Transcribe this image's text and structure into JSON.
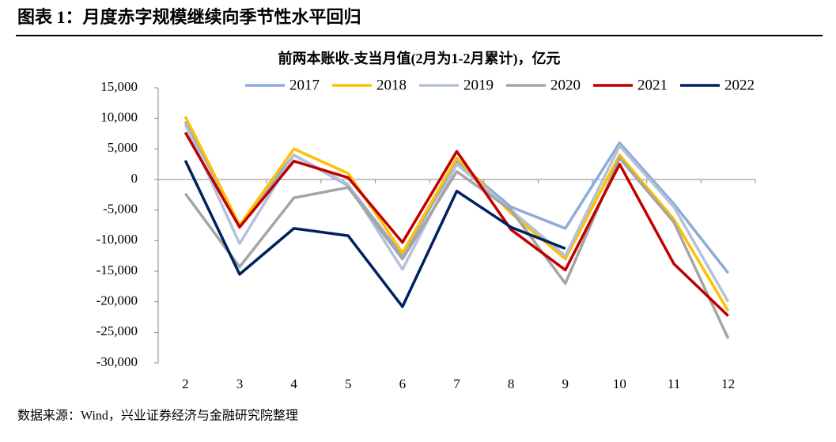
{
  "header": {
    "title": "图表 1：月度赤字规模继续向季节性水平回归"
  },
  "chart_data": {
    "type": "line",
    "title": "前两本账收-支当月值(2月为1-2月累计)，亿元",
    "categories": [
      "2",
      "3",
      "4",
      "5",
      "6",
      "7",
      "8",
      "9",
      "10",
      "11",
      "12"
    ],
    "series": [
      {
        "name": "2017",
        "color": "#8eaadb",
        "values": [
          9500,
          -7500,
          4000,
          -1000,
          -12500,
          3000,
          -4500,
          -8000,
          6000,
          -4000,
          -15300
        ]
      },
      {
        "name": "2018",
        "color": "#ffc000",
        "values": [
          10300,
          -7500,
          5000,
          1000,
          -12000,
          3500,
          -5500,
          -13000,
          4000,
          -6500,
          -21500
        ]
      },
      {
        "name": "2019",
        "color": "#b4c2d8",
        "values": [
          9000,
          -10500,
          4000,
          -800,
          -14700,
          2500,
          -5000,
          -12500,
          5500,
          -4500,
          -20000
        ]
      },
      {
        "name": "2020",
        "color": "#a5a5a5",
        "values": [
          -2300,
          -14300,
          -3000,
          -1300,
          -13000,
          1300,
          -5000,
          -17000,
          3500,
          -7000,
          -26000
        ]
      },
      {
        "name": "2021",
        "color": "#c00000",
        "values": [
          7700,
          -7800,
          3000,
          300,
          -10300,
          4600,
          -8200,
          -14800,
          2500,
          -13800,
          -22300
        ]
      },
      {
        "name": "2022",
        "color": "#002060",
        "values": [
          3100,
          -15500,
          -8000,
          -9200,
          -20800,
          -1900,
          -7800,
          -11300,
          null,
          null,
          null
        ]
      }
    ],
    "ylim": [
      -30000,
      15000
    ],
    "yticks": [
      {
        "value": 15000,
        "label": "15,000"
      },
      {
        "value": 10000,
        "label": "10,000"
      },
      {
        "value": 5000,
        "label": "5,000"
      },
      0,
      {
        "value": -5000,
        "label": "-5,000"
      },
      {
        "value": -10000,
        "label": "-10,000"
      },
      {
        "value": -15000,
        "label": "-15,000"
      },
      {
        "value": -20000,
        "label": "-20,000"
      },
      {
        "value": -25000,
        "label": "-25,000"
      },
      {
        "value": -30000,
        "label": "-30,000"
      }
    ],
    "grid": false
  },
  "footer": {
    "source": "数据来源：Wind，兴业证券经济与金融研究院整理"
  }
}
